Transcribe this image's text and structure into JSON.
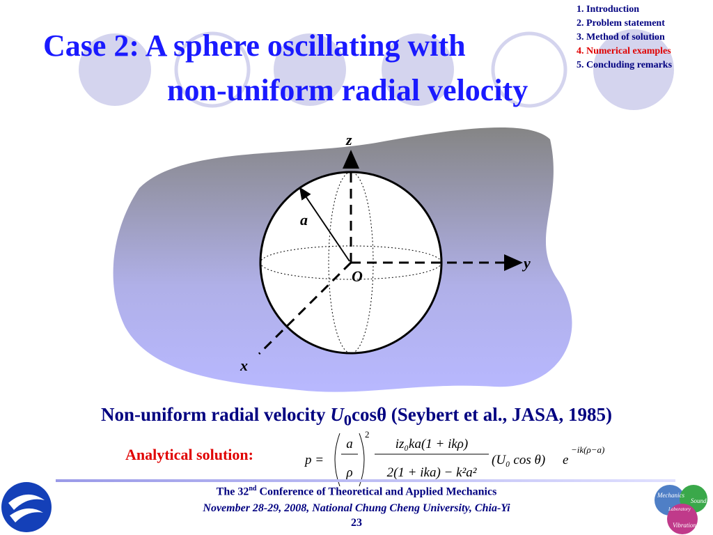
{
  "nav": [
    "1. Introduction",
    "2. Problem statement",
    "3. Method of solution",
    "4. Numerical examples",
    "5. Concluding remarks"
  ],
  "title": [
    "Case 2: A sphere oscillating with",
    "non-uniform radial velocity"
  ],
  "diagram": {
    "z": "z",
    "y": "y",
    "x": "x",
    "radius": "a",
    "origin": "O"
  },
  "caption": {
    "text": "Non-uniform radial velocity ",
    "symbol": "U",
    "subscript": "0",
    "rest": "cosθ (Seybert et al., JASA, 1985)"
  },
  "solution": {
    "label": "Analytical solution:",
    "lhs": "p =",
    "ratio_top": "a",
    "ratio_bottom": "ρ",
    "power": "2",
    "numerator": "iz₀ka(1 + ikρ)",
    "denominator": "2(1 + ika) − k²a²",
    "velocity": "(U₀ cos θ)",
    "exp_base": "e",
    "exponent": "−ik(ρ−a)"
  },
  "footer": {
    "line1_start": "The 32",
    "line1_sup": "nd",
    "line1_end": " Conference of Theoretical and Applied Mechanics",
    "line2": "November 28-29, 2008, National Chung Cheng University, Chia-Yi",
    "page": "23"
  },
  "logo": [
    "Mechanics",
    "Sound",
    "Laboratory",
    "Vibration"
  ]
}
